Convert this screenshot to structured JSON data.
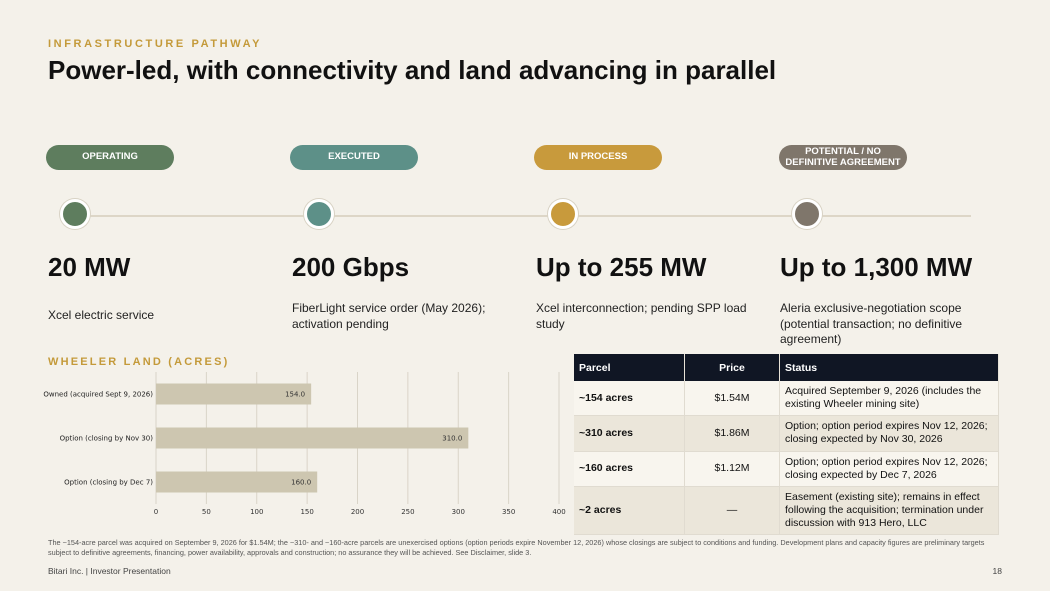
{
  "header": {
    "eyebrow": "INFRASTRUCTURE PATHWAY",
    "title": "Power-led, with connectivity and land advancing in parallel"
  },
  "stages": [
    {
      "status": "OPERATING",
      "color": "#5e7d5e",
      "metric": "20 MW",
      "description": "Xcel electric service"
    },
    {
      "status": "EXECUTED",
      "color": "#5d9088",
      "metric": "200 Gbps",
      "description": "FiberLight service order (May 2026); activation pending"
    },
    {
      "status": "IN PROCESS",
      "color": "#c89a3c",
      "metric": "Up to 255 MW",
      "description": "Xcel interconnection; pending SPP load study"
    },
    {
      "status": "POTENTIAL / NO DEFINITIVE AGREEMENT",
      "color": "#7f766b",
      "metric": "Up to 1,300 MW",
      "description": "Aleria exclusive-negotiation scope (potential transaction; no definitive agreement)"
    }
  ],
  "chart_section_label": "WHEELER LAND (ACRES)",
  "chart_data": {
    "type": "bar",
    "orientation": "horizontal",
    "categories": [
      "Owned (acquired Sept 9, 2026)",
      "Option (closing by Nov 30)",
      "Option (closing by Dec 7)"
    ],
    "values": [
      154.0,
      310.0,
      160.0
    ],
    "value_labels": [
      "154.0",
      "310.0",
      "160.0"
    ],
    "xlim": [
      0,
      400
    ],
    "xticks": [
      0,
      50,
      100,
      150,
      200,
      250,
      300,
      350,
      400
    ],
    "grid": "vertical",
    "bar_color": "#cdc6b0"
  },
  "table": {
    "headers": [
      "Parcel",
      "Price",
      "Status"
    ],
    "rows": [
      {
        "parcel": "~154 acres",
        "price": "$1.54M",
        "status": "Acquired September 9, 2026 (includes the existing Wheeler mining site)"
      },
      {
        "parcel": "~310 acres",
        "price": "$1.86M",
        "status": "Option; option period expires Nov 12, 2026; closing expected by Nov 30, 2026"
      },
      {
        "parcel": "~160 acres",
        "price": "$1.12M",
        "status": "Option; option period expires Nov 12, 2026; closing expected by Dec 7, 2026"
      },
      {
        "parcel": "~2 acres",
        "price": "—",
        "status": "Easement (existing site); remains in effect following the acquisition; termination under discussion with 913 Hero, LLC"
      }
    ]
  },
  "footnote": "The ~154-acre parcel was acquired on September 9, 2026 for $1.54M; the ~310- and ~160-acre parcels are unexercised options (option periods expire November 12, 2026) whose closings are subject to conditions and funding. Development plans and capacity figures are preliminary targets subject to definitive agreements, financing, power availability, approvals and construction; no assurance they will be achieved. See Disclaimer, slide 3.",
  "footer": {
    "left": "Bitari Inc.  |  Investor Presentation",
    "page_number": "18"
  }
}
